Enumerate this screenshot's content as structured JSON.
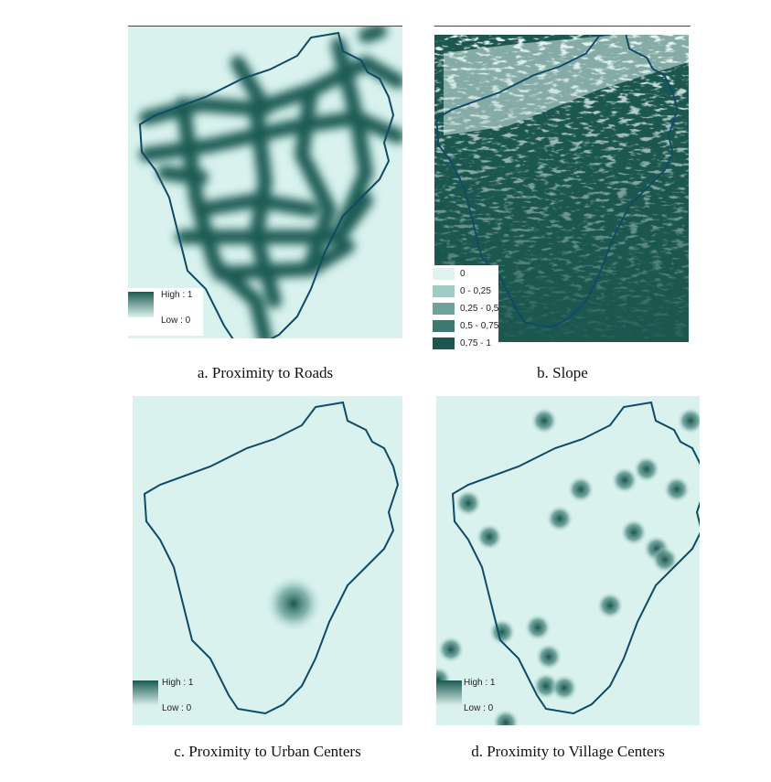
{
  "colors": {
    "background": "#d9f2ee",
    "high": "#1b564f",
    "outline": "#0f4a66"
  },
  "panels": [
    {
      "id": "a",
      "caption": "a. Proximity to Roads",
      "legend": {
        "high": "High : 1",
        "low": "Low : 0"
      }
    },
    {
      "id": "b",
      "caption": "b. Slope",
      "legend": {
        "classes": [
          {
            "label": "0",
            "color": "#dff3ef"
          },
          {
            "label": "0 - 0,25",
            "color": "#9fcbc4"
          },
          {
            "label": "0,25 - 0,5",
            "color": "#6ea39b"
          },
          {
            "label": "0,5 - 0,75",
            "color": "#3e7870"
          },
          {
            "label": "0,75 - 1",
            "color": "#1b564f"
          }
        ]
      }
    },
    {
      "id": "c",
      "caption": "c. Proximity to Urban Centers",
      "legend": {
        "high": "High : 1",
        "low": "Low : 0"
      }
    },
    {
      "id": "d",
      "caption": "d. Proximity to Village Centers",
      "legend": {
        "high": "High : 1",
        "low": "Low : 0"
      }
    }
  ]
}
